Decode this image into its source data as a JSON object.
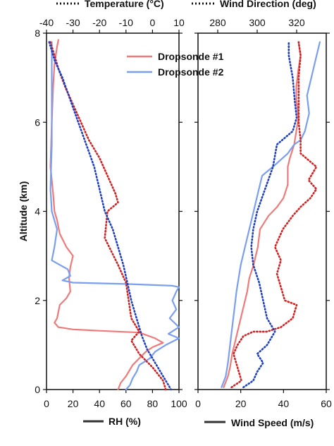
{
  "chart_data": [
    {
      "type": "line",
      "panel": "left",
      "xlabel": "RH (%)",
      "x2label": "Temperature (°C)",
      "ylabel": "Altitude (km)",
      "xlim": [
        0,
        100
      ],
      "x2lim": [
        -40,
        10
      ],
      "ylim": [
        0,
        8
      ],
      "xticks": [
        "0",
        "20",
        "40",
        "60",
        "80",
        "100"
      ],
      "x2ticks": [
        "-40",
        "-30",
        "-20",
        "-10",
        "0",
        "10"
      ],
      "yticks": [
        "0",
        "2",
        "4",
        "6",
        "8"
      ],
      "legend": [
        "Dropsonde #1",
        "Dropsonde #2"
      ],
      "colors": {
        "dropsonde_1": "#f07a7a",
        "dropsonde_2": "#7a9ef0",
        "temp_1": "#d42020",
        "temp_2": "#2040c0"
      },
      "series": [
        {
          "name": "Dropsonde #1",
          "variable": "RH",
          "style": "solid",
          "points": [
            [
              9,
              7.85
            ],
            [
              8,
              7.7
            ],
            [
              6,
              7.3
            ],
            [
              5,
              6.8
            ],
            [
              4,
              6.0
            ],
            [
              3,
              5.0
            ],
            [
              5,
              4.4
            ],
            [
              6,
              4.0
            ],
            [
              8,
              3.8
            ],
            [
              10,
              3.5
            ],
            [
              15,
              3.2
            ],
            [
              20,
              3.0
            ],
            [
              18,
              2.75
            ],
            [
              17,
              2.5
            ],
            [
              18,
              2.2
            ],
            [
              15,
              2.05
            ],
            [
              10,
              1.9
            ],
            [
              8,
              1.6
            ],
            [
              6,
              1.5
            ],
            [
              9,
              1.4
            ],
            [
              20,
              1.35
            ],
            [
              40,
              1.32
            ],
            [
              70,
              1.28
            ],
            [
              82,
              1.15
            ],
            [
              88,
              1.05
            ],
            [
              80,
              0.95
            ],
            [
              75,
              0.85
            ],
            [
              70,
              0.7
            ],
            [
              65,
              0.55
            ],
            [
              60,
              0.3
            ],
            [
              56,
              0.15
            ],
            [
              54,
              0.0
            ]
          ]
        },
        {
          "name": "Dropsonde #2",
          "variable": "RH",
          "style": "solid",
          "points": [
            [
              4,
              7.8
            ],
            [
              4,
              6.5
            ],
            [
              4,
              5.5
            ],
            [
              3,
              4.5
            ],
            [
              4,
              4.0
            ],
            [
              8,
              3.6
            ],
            [
              6,
              3.2
            ],
            [
              4,
              2.9
            ],
            [
              10,
              2.8
            ],
            [
              16,
              2.7
            ],
            [
              18,
              2.55
            ],
            [
              12,
              2.45
            ],
            [
              20,
              2.4
            ],
            [
              60,
              2.37
            ],
            [
              95,
              2.33
            ],
            [
              100,
              2.3
            ],
            [
              98,
              2.2
            ],
            [
              95,
              2.0
            ],
            [
              98,
              1.8
            ],
            [
              93,
              1.6
            ],
            [
              100,
              1.4
            ],
            [
              92,
              1.25
            ],
            [
              100,
              1.15
            ],
            [
              90,
              1.0
            ],
            [
              82,
              0.85
            ],
            [
              78,
              0.7
            ],
            [
              70,
              0.55
            ],
            [
              68,
              0.4
            ],
            [
              65,
              0.25
            ],
            [
              63,
              0.1
            ],
            [
              60,
              0.0
            ]
          ]
        },
        {
          "name": "Dropsonde #1",
          "variable": "Temperature",
          "style": "dotted",
          "points": [
            [
              -38.5,
              7.8
            ],
            [
              -35.5,
              7.2
            ],
            [
              -33,
              6.8
            ],
            [
              -30,
              6.4
            ],
            [
              -27,
              6.0
            ],
            [
              -24,
              5.6
            ],
            [
              -20,
              5.2
            ],
            [
              -17,
              4.8
            ],
            [
              -14,
              4.4
            ],
            [
              -13,
              4.2
            ],
            [
              -17,
              4.0
            ],
            [
              -18,
              3.4
            ],
            [
              -13,
              2.8
            ],
            [
              -10,
              2.4
            ],
            [
              -9,
              2.0
            ],
            [
              -8,
              1.6
            ],
            [
              -5,
              1.3
            ],
            [
              -8,
              1.1
            ],
            [
              -5,
              0.8
            ],
            [
              0,
              0.5
            ],
            [
              4,
              0.2
            ],
            [
              5,
              0.0
            ]
          ]
        },
        {
          "name": "Dropsonde #2",
          "variable": "Temperature",
          "style": "dotted",
          "points": [
            [
              -39,
              7.8
            ],
            [
              -37,
              7.4
            ],
            [
              -34,
              7.0
            ],
            [
              -31,
              6.5
            ],
            [
              -28,
              6.0
            ],
            [
              -25,
              5.5
            ],
            [
              -22,
              5.0
            ],
            [
              -20,
              4.5
            ],
            [
              -18,
              4.0
            ],
            [
              -15,
              3.6
            ],
            [
              -13,
              3.2
            ],
            [
              -11,
              2.8
            ],
            [
              -9.5,
              2.4
            ],
            [
              -8,
              2.0
            ],
            [
              -6,
              1.6
            ],
            [
              -4,
              1.2
            ],
            [
              -2,
              0.9
            ],
            [
              0,
              0.7
            ],
            [
              2,
              0.5
            ],
            [
              4,
              0.3
            ],
            [
              6,
              0.1
            ],
            [
              7,
              0.0
            ]
          ]
        }
      ]
    },
    {
      "type": "line",
      "panel": "right",
      "xlabel": "Wind Speed (m/s)",
      "x2label": "Wind Direction (deg)",
      "xlim": [
        0,
        60
      ],
      "x2lim": [
        270,
        335
      ],
      "ylim": [
        0,
        8
      ],
      "xticks": [
        "0",
        "20",
        "40",
        "60"
      ],
      "x2ticks": [
        "280",
        "300",
        "320"
      ],
      "series": [
        {
          "name": "Dropsonde #1",
          "variable": "Wind Speed",
          "style": "solid",
          "points": [
            [
              12,
              0.05
            ],
            [
              14,
              0.3
            ],
            [
              15,
              0.5
            ],
            [
              16,
              0.8
            ],
            [
              17,
              1.0
            ],
            [
              19,
              1.4
            ],
            [
              21,
              1.8
            ],
            [
              23,
              2.2
            ],
            [
              24,
              2.5
            ],
            [
              26,
              2.8
            ],
            [
              28,
              3.2
            ],
            [
              29,
              3.6
            ],
            [
              33,
              3.9
            ],
            [
              37,
              4.1
            ],
            [
              40,
              4.3
            ],
            [
              42,
              4.6
            ],
            [
              42,
              5.0
            ],
            [
              43,
              5.2
            ],
            [
              45,
              5.5
            ],
            [
              46,
              5.8
            ],
            [
              47,
              6.1
            ],
            [
              46,
              6.5
            ],
            [
              46,
              6.8
            ],
            [
              47,
              7.2
            ],
            [
              48,
              7.5
            ],
            [
              47,
              7.8
            ]
          ]
        },
        {
          "name": "Dropsonde #2",
          "variable": "Wind Speed",
          "style": "solid",
          "points": [
            [
              11,
              0.05
            ],
            [
              13,
              0.3
            ],
            [
              14,
              0.6
            ],
            [
              15,
              1.0
            ],
            [
              16,
              1.4
            ],
            [
              17,
              1.8
            ],
            [
              18,
              2.2
            ],
            [
              19,
              2.5
            ],
            [
              20,
              2.8
            ],
            [
              22,
              3.2
            ],
            [
              24,
              3.6
            ],
            [
              26,
              4.0
            ],
            [
              28,
              4.4
            ],
            [
              30,
              4.8
            ],
            [
              35,
              5.0
            ],
            [
              42,
              5.3
            ],
            [
              45,
              5.5
            ],
            [
              48,
              5.6
            ],
            [
              50,
              5.8
            ],
            [
              52,
              6.2
            ],
            [
              51,
              6.6
            ],
            [
              53,
              7.0
            ],
            [
              55,
              7.4
            ],
            [
              57,
              7.8
            ]
          ]
        },
        {
          "name": "Dropsonde #1",
          "variable": "Wind Direction",
          "style": "dotted",
          "points": [
            [
              287,
              0.05
            ],
            [
              292,
              0.2
            ],
            [
              290,
              0.5
            ],
            [
              288,
              0.8
            ],
            [
              290,
              1.0
            ],
            [
              293,
              1.2
            ],
            [
              298,
              1.3
            ],
            [
              305,
              1.3
            ],
            [
              312,
              1.4
            ],
            [
              318,
              1.6
            ],
            [
              320,
              1.9
            ],
            [
              314,
              2.0
            ],
            [
              312,
              2.3
            ],
            [
              310,
              2.6
            ],
            [
              312,
              2.9
            ],
            [
              309,
              3.2
            ],
            [
              313,
              3.6
            ],
            [
              318,
              3.9
            ],
            [
              322,
              4.1
            ],
            [
              327,
              4.3
            ],
            [
              330,
              4.5
            ],
            [
              326,
              4.7
            ],
            [
              330,
              5.0
            ],
            [
              322,
              5.3
            ],
            [
              322,
              5.6
            ],
            [
              321,
              6.0
            ],
            [
              321,
              6.5
            ],
            [
              321,
              7.0
            ],
            [
              322,
              7.5
            ],
            [
              321,
              7.8
            ]
          ]
        },
        {
          "name": "Dropsonde #2",
          "variable": "Wind Direction",
          "style": "dotted",
          "points": [
            [
              293,
              0.05
            ],
            [
              298,
              0.2
            ],
            [
              300,
              0.4
            ],
            [
              303,
              0.6
            ],
            [
              300,
              0.8
            ],
            [
              305,
              1.0
            ],
            [
              309,
              1.3
            ],
            [
              305,
              1.6
            ],
            [
              303,
              2.0
            ],
            [
              301,
              2.4
            ],
            [
              298,
              2.8
            ],
            [
              297,
              3.2
            ],
            [
              298,
              3.6
            ],
            [
              300,
              4.0
            ],
            [
              304,
              4.5
            ],
            [
              308,
              5.0
            ],
            [
              310,
              5.5
            ],
            [
              318,
              5.8
            ],
            [
              320,
              6.1
            ],
            [
              319,
              6.5
            ],
            [
              318,
              7.0
            ],
            [
              316,
              7.5
            ],
            [
              316,
              7.8
            ]
          ]
        }
      ]
    }
  ]
}
